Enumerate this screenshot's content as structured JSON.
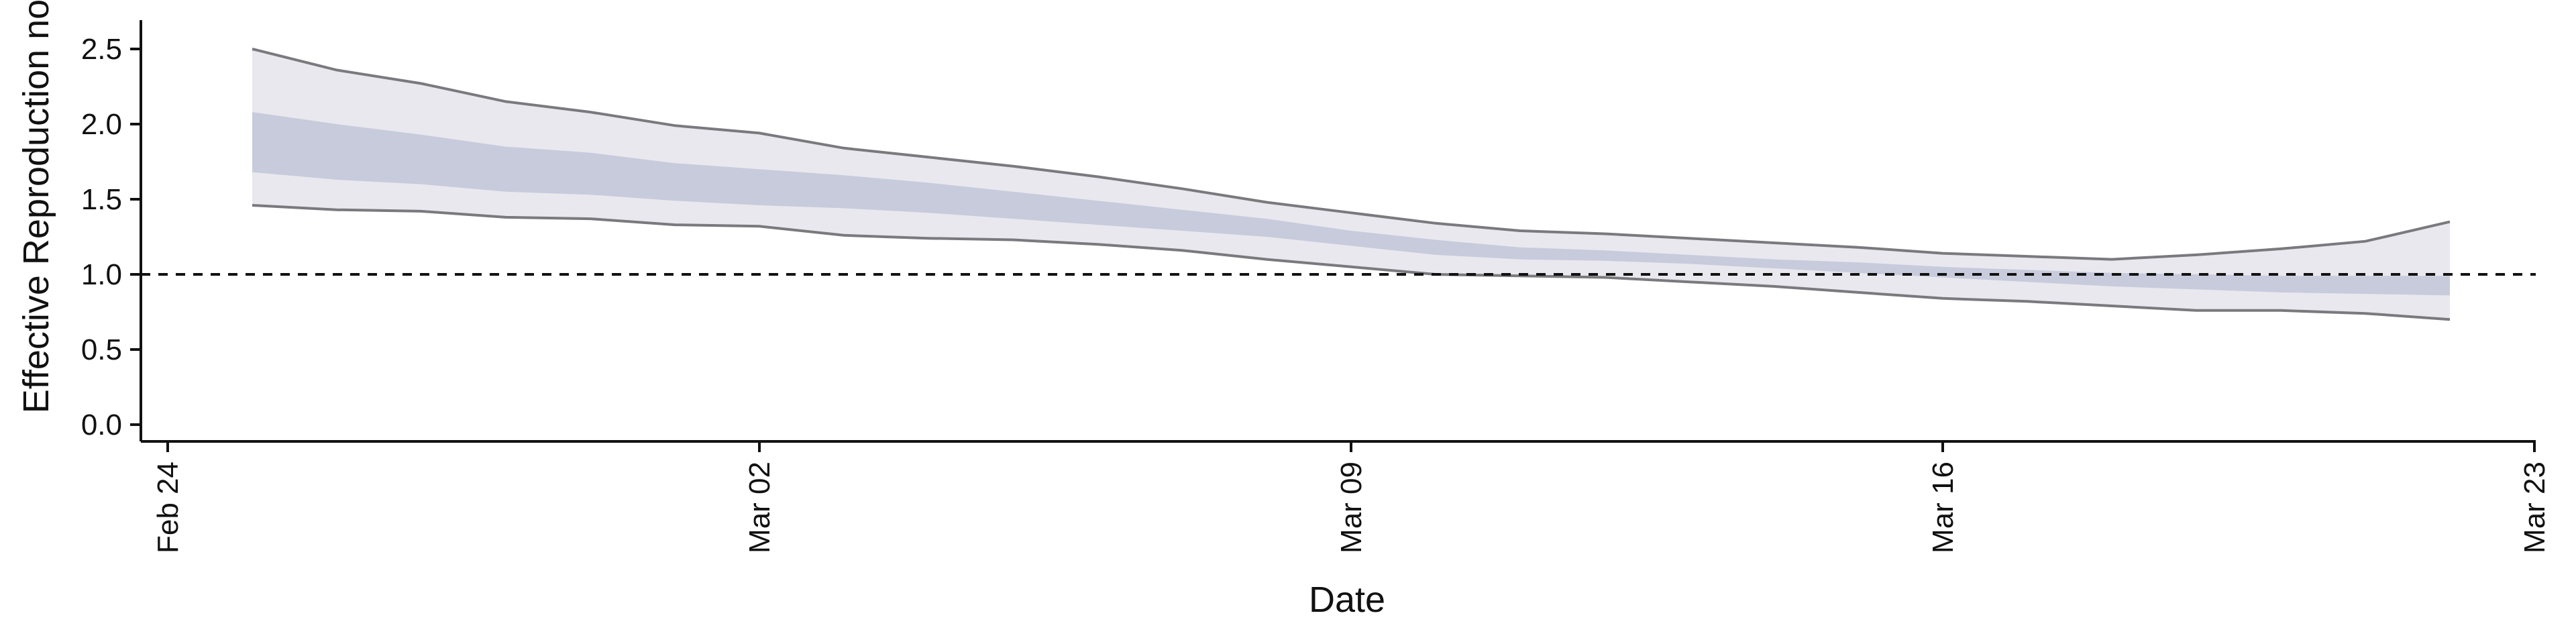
{
  "chart_data": {
    "type": "area",
    "title": "",
    "xlabel": "Date",
    "ylabel": "Effective Reproduction no.",
    "x_domain": [
      "2020-02-24",
      "2020-03-23"
    ],
    "ylim": [
      -0.2,
      2.65
    ],
    "x_ticks": [
      {
        "date": "2020-02-24",
        "label": "Feb 24"
      },
      {
        "date": "2020-03-02",
        "label": "Mar 02"
      },
      {
        "date": "2020-03-09",
        "label": "Mar 09"
      },
      {
        "date": "2020-03-16",
        "label": "Mar 16"
      },
      {
        "date": "2020-03-23",
        "label": "Mar 23"
      }
    ],
    "y_ticks": [
      {
        "value": 0.0,
        "label": "0.0"
      },
      {
        "value": 0.5,
        "label": "0.5"
      },
      {
        "value": 1.0,
        "label": "1.0"
      },
      {
        "value": 1.5,
        "label": "1.5"
      },
      {
        "value": 2.0,
        "label": "2.0"
      },
      {
        "value": 2.5,
        "label": "2.5"
      }
    ],
    "reference_line": {
      "y": 1.0,
      "style": "dashed"
    },
    "grid": false,
    "legend": "none",
    "series": [
      {
        "dates": [
          "2020-02-25",
          "2020-02-26",
          "2020-02-27",
          "2020-02-28",
          "2020-02-29",
          "2020-03-01",
          "2020-03-02",
          "2020-03-03",
          "2020-03-04",
          "2020-03-05",
          "2020-03-06",
          "2020-03-07",
          "2020-03-08",
          "2020-03-09",
          "2020-03-10",
          "2020-03-11",
          "2020-03-12",
          "2020-03-13",
          "2020-03-14",
          "2020-03-15",
          "2020-03-16",
          "2020-03-17",
          "2020-03-18",
          "2020-03-19",
          "2020-03-20",
          "2020-03-21",
          "2020-03-22"
        ],
        "upper_90": [
          2.5,
          2.36,
          2.27,
          2.15,
          2.08,
          1.99,
          1.94,
          1.84,
          1.78,
          1.72,
          1.65,
          1.57,
          1.48,
          1.41,
          1.34,
          1.29,
          1.27,
          1.24,
          1.21,
          1.18,
          1.14,
          1.12,
          1.1,
          1.13,
          1.17,
          1.22,
          1.35
        ],
        "upper_50": [
          2.08,
          2.0,
          1.93,
          1.85,
          1.81,
          1.74,
          1.7,
          1.66,
          1.61,
          1.55,
          1.49,
          1.43,
          1.37,
          1.29,
          1.23,
          1.18,
          1.16,
          1.13,
          1.1,
          1.08,
          1.05,
          1.03,
          1.01,
          1.0,
          0.99,
          0.99,
          0.99
        ],
        "lower_50": [
          1.68,
          1.63,
          1.6,
          1.55,
          1.53,
          1.49,
          1.46,
          1.44,
          1.41,
          1.37,
          1.33,
          1.29,
          1.25,
          1.19,
          1.13,
          1.1,
          1.09,
          1.07,
          1.04,
          1.01,
          0.98,
          0.95,
          0.92,
          0.9,
          0.88,
          0.87,
          0.86
        ],
        "lower_90": [
          1.46,
          1.43,
          1.42,
          1.38,
          1.37,
          1.33,
          1.32,
          1.26,
          1.24,
          1.23,
          1.2,
          1.16,
          1.1,
          1.05,
          1.0,
          0.99,
          0.98,
          0.95,
          0.92,
          0.88,
          0.84,
          0.82,
          0.79,
          0.76,
          0.76,
          0.74,
          0.7
        ]
      }
    ],
    "colors": {
      "band_90": "#e8e8ee",
      "band_50": "#c7cbdc",
      "bound_line": "#7a7a7e",
      "reference_line": "#111111",
      "axis": "#111111"
    }
  }
}
